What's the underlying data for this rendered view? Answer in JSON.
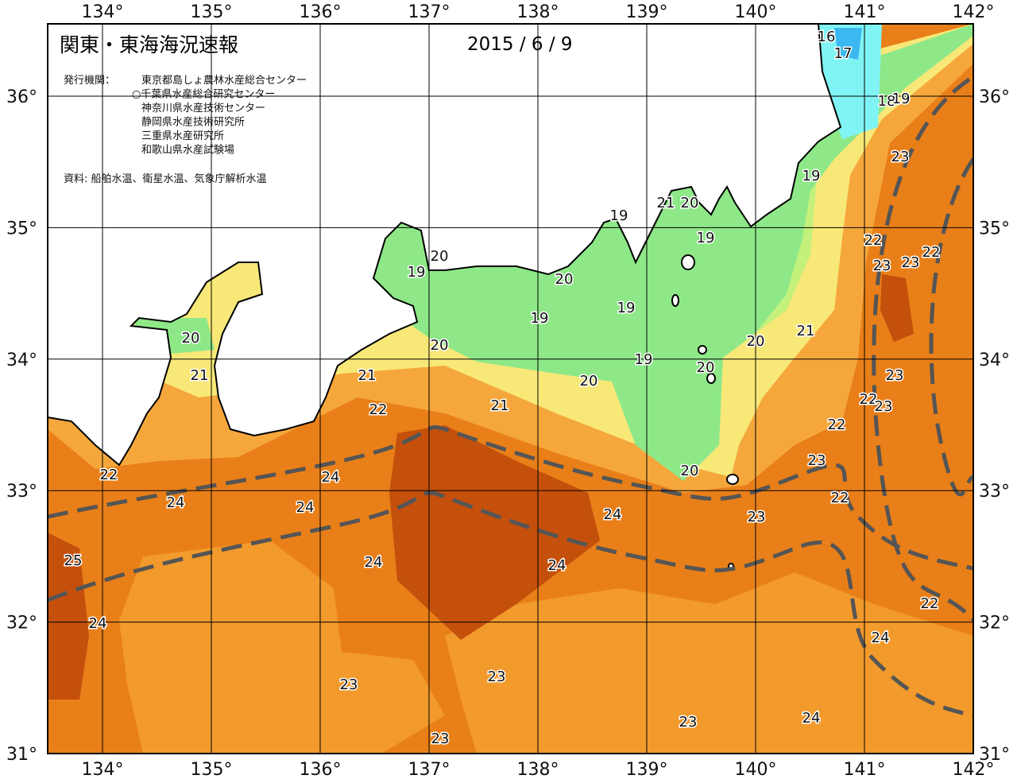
{
  "header": {
    "title": "関東・東海海況速報",
    "date": "2015 / 6 / 9",
    "issuer_label": "発行機関：",
    "issuers": [
      "東京都島しょ農林水産総合センター",
      "○千葉県水産総合研究センター",
      "神奈川県水産技術センター",
      "静岡県水産技術研究所",
      "三重県水産研究所",
      "和歌山県水産試験場"
    ],
    "source": "資料: 船舶水温、衛星水温、気象庁解析水温"
  },
  "map": {
    "lon_ticks": [
      {
        "value": 134,
        "label": "134°"
      },
      {
        "value": 135,
        "label": "135°"
      },
      {
        "value": 136,
        "label": "136°"
      },
      {
        "value": 137,
        "label": "137°"
      },
      {
        "value": 138,
        "label": "138°"
      },
      {
        "value": 139,
        "label": "139°"
      },
      {
        "value": 140,
        "label": "140°"
      },
      {
        "value": 141,
        "label": "141°"
      },
      {
        "value": 142,
        "label": "142°"
      }
    ],
    "lat_ticks": [
      {
        "value": 31,
        "label": "31°"
      },
      {
        "value": 32,
        "label": "32°"
      },
      {
        "value": 33,
        "label": "33°"
      },
      {
        "value": 34,
        "label": "34°"
      },
      {
        "value": 35,
        "label": "35°"
      },
      {
        "value": 36,
        "label": "36°"
      }
    ],
    "contour_labels": [
      16,
      17,
      18,
      19,
      19,
      23,
      21,
      20,
      19,
      19,
      22,
      23,
      23,
      22,
      20,
      19,
      20,
      19,
      19,
      20,
      20,
      21,
      20,
      19,
      20,
      23,
      21,
      21,
      20,
      22,
      23,
      21,
      22,
      22,
      23,
      20,
      22,
      24,
      24,
      22,
      24,
      24,
      23,
      25,
      24,
      24,
      22,
      24,
      24,
      23,
      23,
      23,
      24,
      23
    ]
  }
}
